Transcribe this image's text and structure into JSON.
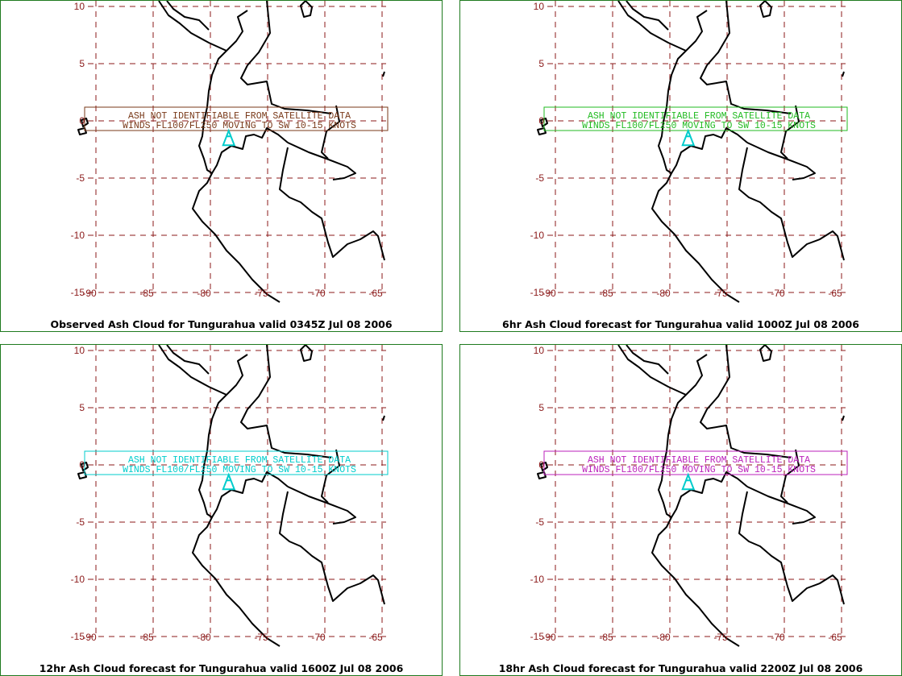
{
  "panels": [
    {
      "caption": "Observed Ash Cloud for Tungurahua valid 0345Z Jul 08 2006",
      "text_line1": "ASH NOT IDENTIFIABLE FROM SATELLITE DATA",
      "text_line2": "WINDS FL100/FL250 MOVING TO SW 10-15 KNOTS",
      "text_color": "#7a3a1a"
    },
    {
      "caption": "6hr Ash Cloud forecast for Tungurahua valid 1000Z Jul 08 2006",
      "text_line1": "ASH NOT IDENTIFIABLE FROM SATELLITE DATA",
      "text_line2": "WINDS FL100/FL250 MOVING TO SW 10-15 KNOTS",
      "text_color": "#22bb22"
    },
    {
      "caption": "12hr Ash Cloud forecast for Tungurahua valid 1600Z Jul 08 2006",
      "text_line1": "ASH NOT IDENTIFIABLE FROM SATELLITE DATA",
      "text_line2": "WINDS FL100/FL250 MOVING TO SW 10-15 KNOTS",
      "text_color": "#00cccc"
    },
    {
      "caption": "18hr Ash Cloud forecast for Tungurahua valid 2200Z Jul 08 2006",
      "text_line1": "ASH NOT IDENTIFIABLE FROM SATELLITE DATA",
      "text_line2": "WINDS FL100/FL250 MOVING TO SW 10-15 KNOTS",
      "text_color": "#bb22bb"
    }
  ],
  "map": {
    "lat_labels": [
      "10",
      "5",
      "0",
      "-5",
      "-10",
      "-15"
    ],
    "lon_labels": [
      "-90",
      "-85",
      "-80",
      "-75",
      "-70",
      "-65"
    ],
    "grid_color": "#8b1a1a",
    "coast_color": "#000000",
    "volcano_color": "#00cccc",
    "volcano_icon": "volcano-triangle-icon"
  }
}
